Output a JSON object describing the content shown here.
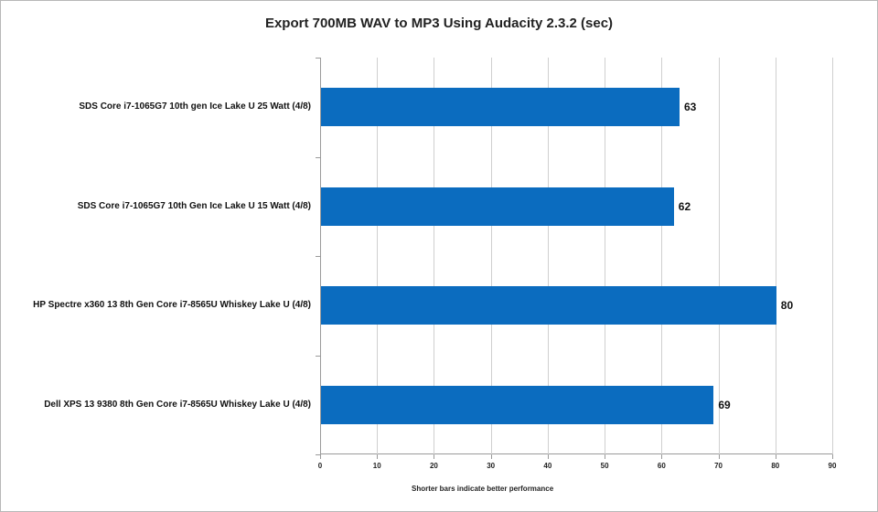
{
  "chart_data": {
    "type": "bar",
    "orientation": "horizontal",
    "title": "Export 700MB WAV to MP3 Using Audacity 2.3.2 (sec)",
    "xlabel": "Shorter bars indicate better performance",
    "ylabel": "",
    "categories": [
      "SDS Core i7-1065G7 10th gen Ice Lake U 25 Watt (4/8)",
      "SDS Core i7-1065G7 10th Gen Ice Lake U 15 Watt (4/8)",
      "HP Spectre x360 13 8th Gen Core i7-8565U Whiskey Lake U (4/8)",
      "Dell XPS 13 9380 8th Gen Core i7-8565U Whiskey Lake U (4/8)"
    ],
    "values": [
      63,
      62,
      80,
      69
    ],
    "data_labels": [
      "63",
      "62",
      "80",
      "69"
    ],
    "xlim": [
      0,
      90
    ],
    "xticks": [
      "0",
      "10",
      "20",
      "30",
      "40",
      "50",
      "60",
      "70",
      "80",
      "90"
    ],
    "grid": "vertical",
    "legend": "none",
    "bar_color": "#0b6cbf"
  }
}
